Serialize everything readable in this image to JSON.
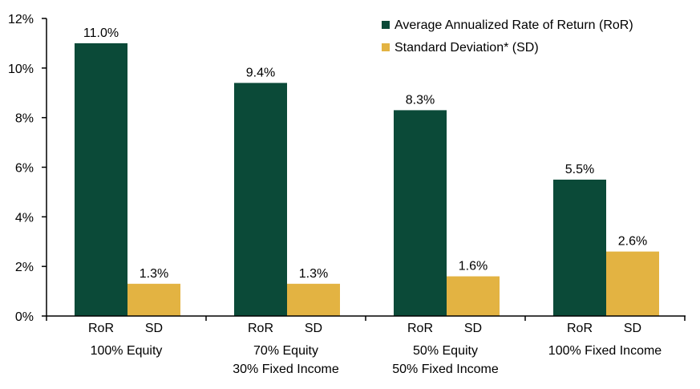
{
  "chart_data": {
    "type": "bar",
    "groups": [
      {
        "lines": [
          "100% Equity"
        ],
        "bars": [
          {
            "series": 0,
            "sub": "RoR",
            "value": 11.0,
            "label": "11.0%"
          },
          {
            "series": 1,
            "sub": "SD",
            "value": 1.3,
            "label": "1.3%"
          }
        ]
      },
      {
        "lines": [
          "70% Equity",
          "30% Fixed Income"
        ],
        "bars": [
          {
            "series": 0,
            "sub": "RoR",
            "value": 9.4,
            "label": "9.4%"
          },
          {
            "series": 1,
            "sub": "SD",
            "value": 1.3,
            "label": "1.3%"
          }
        ]
      },
      {
        "lines": [
          "50% Equity",
          "50% Fixed Income"
        ],
        "bars": [
          {
            "series": 0,
            "sub": "RoR",
            "value": 8.3,
            "label": "8.3%"
          },
          {
            "series": 1,
            "sub": "SD",
            "value": 1.6,
            "label": "1.6%"
          }
        ]
      },
      {
        "lines": [
          "100% Fixed Income"
        ],
        "bars": [
          {
            "series": 0,
            "sub": "RoR",
            "value": 5.5,
            "label": "5.5%"
          },
          {
            "series": 1,
            "sub": "SD",
            "value": 2.6,
            "label": "2.6%"
          }
        ]
      }
    ],
    "series": [
      {
        "name": "Average Annualized Rate of Return (RoR)",
        "color": "#0b4a38"
      },
      {
        "name": "Standard Deviation* (SD)",
        "color": "#e3b342"
      }
    ],
    "ylim": [
      0,
      12
    ],
    "yticks": [
      0,
      2,
      4,
      6,
      8,
      10,
      12
    ],
    "ytick_labels": [
      "0%",
      "2%",
      "4%",
      "6%",
      "8%",
      "10%",
      "12%"
    ],
    "grid": false,
    "legend_position": "top-right"
  }
}
